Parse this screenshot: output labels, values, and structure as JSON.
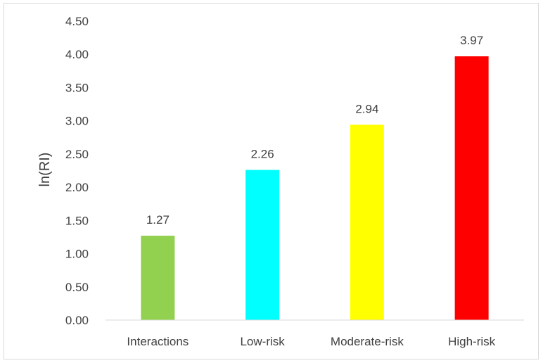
{
  "chart_data": {
    "type": "bar",
    "title": "",
    "xlabel": "",
    "ylabel": "ln(RI)",
    "categories": [
      "Interactions",
      "Low-risk",
      "Moderate-risk",
      "High-risk"
    ],
    "values": [
      1.27,
      2.26,
      2.94,
      3.97
    ],
    "value_labels": [
      "1.27",
      "2.26",
      "2.94",
      "3.97"
    ],
    "bar_colors": [
      "#92d050",
      "#00ffff",
      "#ffff00",
      "#ff0000"
    ],
    "ylim": [
      0,
      4.5
    ],
    "yticks": [
      0,
      0.5,
      1.0,
      1.5,
      2.0,
      2.5,
      3.0,
      3.5,
      4.0,
      4.5
    ],
    "ytick_labels": [
      "0.00",
      "0.50",
      "1.00",
      "1.50",
      "2.00",
      "2.50",
      "3.00",
      "3.50",
      "4.00",
      "4.50"
    ],
    "grid": false,
    "legend": "none"
  }
}
